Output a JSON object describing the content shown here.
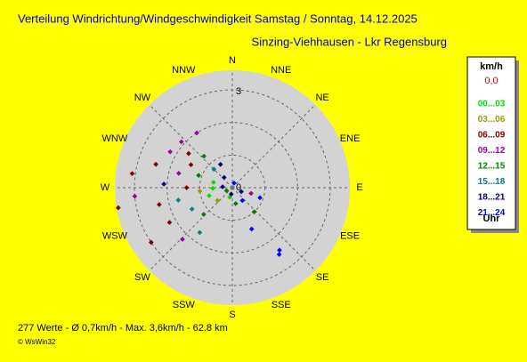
{
  "chart_data": {
    "type": "polar-scatter",
    "title": "Verteilung Windrichtung/Windgeschwindigkeit Samstag / Sonntag, 14.12.2025",
    "subtitle": "Sinzing-Viehhausen - Lkr Regensburg",
    "directions": [
      "N",
      "NNE",
      "NE",
      "ENE",
      "E",
      "ESE",
      "SE",
      "SSE",
      "S",
      "SSW",
      "SW",
      "WSW",
      "W",
      "WNW",
      "NW",
      "NNW"
    ],
    "rlim": [
      0,
      3.6
    ],
    "rticks": [
      0,
      3
    ],
    "rgrid": [
      1,
      2,
      3
    ],
    "legend_title": "km/h",
    "calm_label": "0,0",
    "calm_color": "#e00000",
    "legend_footer": "Uhr",
    "series": [
      {
        "name": "00...03",
        "color": "#00dd00",
        "dir": [
          268,
          286,
          195,
          251
        ],
        "speed": [
          0.6,
          0.6,
          0.3,
          0.75
        ]
      },
      {
        "name": "03...06",
        "color": "#999900",
        "dir": [
          264,
          229
        ],
        "speed": [
          1.0,
          0.6
        ]
      },
      {
        "name": "06...09",
        "color": "#800000",
        "dir": [
          260,
          278,
          308,
          257,
          241,
          236,
          287,
          270,
          299
        ],
        "speed": [
          3.55,
          3.1,
          1.7,
          2.3,
          2.2,
          3.0,
          2.45,
          1.4,
          1.45
        ]
      },
      {
        "name": "09...12",
        "color": "#a000a0",
        "dir": [
          312,
          300,
          327,
          285,
          224,
          107,
          265
        ],
        "speed": [
          2.1,
          2.2,
          2.0,
          1.7,
          2.2,
          0.6,
          3.0
        ]
      },
      {
        "name": "12...15",
        "color": "#008000",
        "dir": [
          318,
          290,
          138,
          227,
          168,
          243
        ],
        "speed": [
          1.3,
          1.1,
          1.0,
          1.2,
          0.5,
          0.2
        ]
      },
      {
        "name": "15...18",
        "color": "#008080",
        "dir": [
          216,
          242,
          257,
          315
        ],
        "speed": [
          1.7,
          1.4,
          1.7,
          0.8
        ]
      },
      {
        "name": "18...21",
        "color": "#000080",
        "dir": [
          275,
          114,
          333,
          190,
          321,
          273
        ],
        "speed": [
          0.3,
          0.3,
          0.8,
          0.2,
          0.4,
          2.1
        ]
      },
      {
        "name": "21...24",
        "color": "#0000ff",
        "dir": [
          155,
          145,
          143,
          20,
          142,
          110
        ],
        "speed": [
          1.4,
          2.5,
          2.4,
          0.15,
          0.5,
          0.9
        ]
      }
    ],
    "footer": "277 Werte   -   Ø 0,7km/h  -  Max. 3,6km/h  -   62.8 km",
    "copyright": "© WsWin32"
  }
}
